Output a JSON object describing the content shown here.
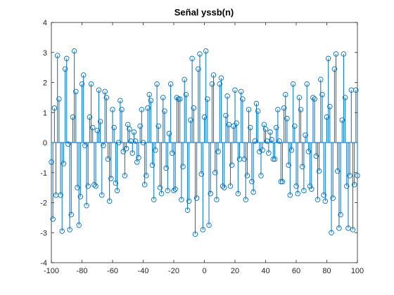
{
  "chart_data": {
    "type": "stem",
    "title": "Señal yssb(n)",
    "x": [
      -100,
      -99,
      -98,
      -97,
      -96,
      -95,
      -94,
      -93,
      -92,
      -91,
      -90,
      -89,
      -88,
      -87,
      -86,
      -85,
      -84,
      -83,
      -82,
      -81,
      -80,
      -79,
      -78,
      -77,
      -76,
      -75,
      -74,
      -73,
      -72,
      -71,
      -70,
      -69,
      -68,
      -67,
      -66,
      -65,
      -64,
      -63,
      -62,
      -61,
      -60,
      -59,
      -58,
      -57,
      -56,
      -55,
      -54,
      -53,
      -52,
      -51,
      -50,
      -49,
      -48,
      -47,
      -46,
      -45,
      -44,
      -43,
      -42,
      -41,
      -40,
      -39,
      -38,
      -37,
      -36,
      -35,
      -34,
      -33,
      -32,
      -31,
      -30,
      -29,
      -28,
      -27,
      -26,
      -25,
      -24,
      -23,
      -22,
      -21,
      -20,
      -19,
      -18,
      -17,
      -16,
      -15,
      -14,
      -13,
      -12,
      -11,
      -10,
      -9,
      -8,
      -7,
      -6,
      -5,
      -4,
      -3,
      -2,
      -1,
      0,
      1,
      2,
      3,
      4,
      5,
      6,
      7,
      8,
      9,
      10,
      11,
      12,
      13,
      14,
      15,
      16,
      17,
      18,
      19,
      20,
      21,
      22,
      23,
      24,
      25,
      26,
      27,
      28,
      29,
      30,
      31,
      32,
      33,
      34,
      35,
      36,
      37,
      38,
      39,
      40,
      41,
      42,
      43,
      44,
      45,
      46,
      47,
      48,
      49,
      50,
      51,
      52,
      53,
      54,
      55,
      56,
      57,
      58,
      59,
      60,
      61,
      62,
      63,
      64,
      65,
      66,
      67,
      68,
      69,
      70,
      71,
      72,
      73,
      74,
      75,
      76,
      77,
      78,
      79,
      80,
      81,
      82,
      83,
      84,
      85,
      86,
      87,
      88,
      89,
      90,
      91,
      92,
      93,
      94,
      95,
      96,
      97,
      98,
      99,
      100
    ],
    "values": [
      -0.65,
      -2.55,
      1.15,
      -1.75,
      2.9,
      1.45,
      -1.75,
      -2.95,
      -0.7,
      2.45,
      2.8,
      -0.05,
      -2.9,
      -2.4,
      0.85,
      3.05,
      1.7,
      -1.5,
      -2.75,
      -1.8,
      1.95,
      2.25,
      -0.1,
      -2.1,
      -1.45,
      0.85,
      1.95,
      0.5,
      -1.4,
      -1.45,
      0.4,
      1.75,
      0.7,
      -1.75,
      -0.1,
      1.7,
      1.5,
      -0.55,
      -1.95,
      -1.2,
      1.1,
      0.5,
      -1.35,
      -1.6,
      0.0,
      1.4,
      1.1,
      -0.3,
      -1.1,
      -0.2,
      0.6,
      0.45,
      0.05,
      -0.35,
      0.35,
      0.05,
      -0.65,
      -0.5,
      0.55,
      1.1,
      0.0,
      -1.4,
      -1.1,
      1.15,
      1.6,
      1.4,
      -0.75,
      -1.9,
      -0.25,
      1.95,
      0.55,
      -1.5,
      -1.7,
      1.5,
      1.05,
      -0.85,
      -1.6,
      0.3,
      1.95,
      -0.35,
      -1.6,
      -1.55,
      1.5,
      1.45,
      1.45,
      -1.9,
      -0.8,
      2.1,
      1.6,
      -2.25,
      -1.95,
      0.75,
      2.8,
      1.15,
      -3.05,
      -1.85,
      2.45,
      2.95,
      -1.05,
      -2.9,
      0.85,
      3.05,
      1.45,
      -2.75,
      -1.7,
      1.95,
      2.25,
      -1.0,
      -1.9,
      -0.3,
      1.95,
      2.15,
      -1.45,
      -1.5,
      0.9,
      1.55,
      0.6,
      -1.45,
      -0.75,
      0.55,
      1.75,
      0.65,
      -1.7,
      -0.55,
      1.7,
      1.45,
      -0.55,
      -1.9,
      -1.1,
      1.1,
      0.5,
      -1.3,
      -1.65,
      0.05,
      1.3,
      1.05,
      -0.3,
      -1.1,
      -0.25,
      0.6,
      0.45,
      0.05,
      -0.35,
      0.35,
      0.1,
      -0.55,
      -0.55,
      0.5,
      1.1,
      0.05,
      -1.3,
      -1.3,
      1.15,
      1.6,
      0.8,
      -0.75,
      -1.75,
      -0.25,
      1.95,
      0.55,
      -1.45,
      -1.7,
      1.5,
      1.1,
      -0.8,
      -1.6,
      0.25,
      1.95,
      -0.3,
      -1.45,
      -1.55,
      1.5,
      1.45,
      -0.45,
      -1.9,
      -0.95,
      2.1,
      1.6,
      -1.75,
      -1.95,
      0.85,
      2.8,
      1.2,
      -3.0,
      -1.85,
      2.45,
      2.95,
      -0.95,
      -2.85,
      -2.4,
      0.75,
      2.95,
      1.5,
      -1.45,
      -2.85,
      -1.1,
      1.75,
      -2.9,
      -1.4,
      1.75,
      -1.1
    ],
    "color": "#0072bd",
    "xlim": [
      -100,
      100
    ],
    "xticks": [
      -100,
      -80,
      -60,
      -40,
      -20,
      0,
      20,
      40,
      60,
      80,
      100
    ],
    "ylim": [
      -4,
      4
    ],
    "yticks": [
      -4,
      -3,
      -2,
      -1,
      0,
      1,
      2,
      3,
      4
    ]
  }
}
